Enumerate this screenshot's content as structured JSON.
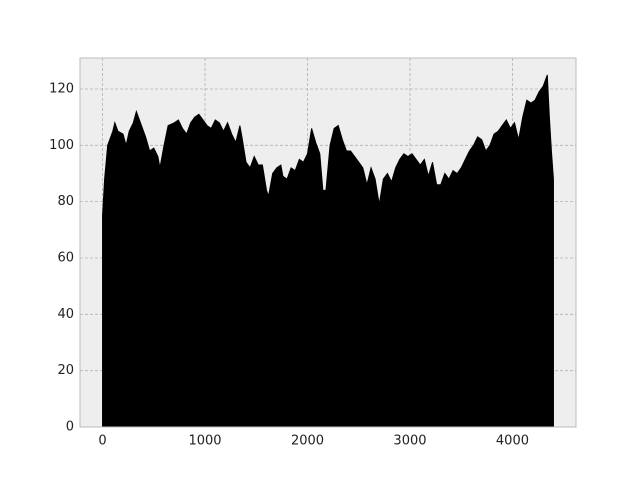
{
  "chart_data": {
    "type": "area",
    "color": "#000000",
    "grid": true,
    "x": [
      0,
      20,
      50,
      100,
      120,
      150,
      200,
      230,
      260,
      300,
      330,
      370,
      420,
      460,
      500,
      540,
      560,
      600,
      640,
      700,
      740,
      780,
      820,
      860,
      900,
      940,
      980,
      1020,
      1060,
      1100,
      1140,
      1180,
      1220,
      1260,
      1300,
      1340,
      1360,
      1400,
      1440,
      1480,
      1520,
      1560,
      1600,
      1620,
      1660,
      1700,
      1740,
      1760,
      1800,
      1840,
      1880,
      1920,
      1960,
      2000,
      2040,
      2080,
      2120,
      2150,
      2180,
      2220,
      2260,
      2300,
      2340,
      2380,
      2420,
      2460,
      2500,
      2540,
      2580,
      2620,
      2660,
      2700,
      2740,
      2780,
      2820,
      2860,
      2900,
      2940,
      2980,
      3020,
      3060,
      3100,
      3140,
      3180,
      3220,
      3260,
      3300,
      3340,
      3380,
      3420,
      3460,
      3500,
      3540,
      3580,
      3620,
      3660,
      3700,
      3740,
      3780,
      3820,
      3860,
      3900,
      3940,
      3980,
      4020,
      4060,
      4100,
      4140,
      4180,
      4220,
      4260,
      4300,
      4340,
      4360,
      4380,
      4400
    ],
    "values": [
      75,
      88,
      100,
      105,
      108,
      105,
      104,
      100,
      105,
      108,
      112,
      108,
      103,
      98,
      99,
      96,
      92,
      100,
      107,
      108,
      109,
      106,
      104,
      108,
      110,
      111,
      109,
      107,
      106,
      109,
      108,
      105,
      108,
      104,
      101,
      107,
      103,
      94,
      92,
      96,
      93,
      93,
      84,
      82,
      90,
      92,
      93,
      89,
      88,
      92,
      91,
      95,
      94,
      97,
      106,
      101,
      97,
      84,
      84,
      100,
      106,
      107,
      102,
      98,
      98,
      96,
      94,
      92,
      86,
      92,
      88,
      79,
      88,
      90,
      87,
      92,
      95,
      97,
      96,
      97,
      95,
      93,
      95,
      89,
      94,
      86,
      86,
      90,
      88,
      91,
      90,
      92,
      95,
      98,
      100,
      103,
      102,
      98,
      100,
      104,
      105,
      107,
      109,
      106,
      108,
      102,
      110,
      116,
      115,
      116,
      119,
      121,
      125,
      110,
      98,
      88
    ],
    "xlim": [
      -220,
      4620
    ],
    "xticks": [
      0,
      1000,
      2000,
      3000,
      4000
    ],
    "ylim": [
      0,
      131
    ],
    "yticks": [
      0,
      20,
      40,
      60,
      80,
      100,
      120
    ]
  }
}
